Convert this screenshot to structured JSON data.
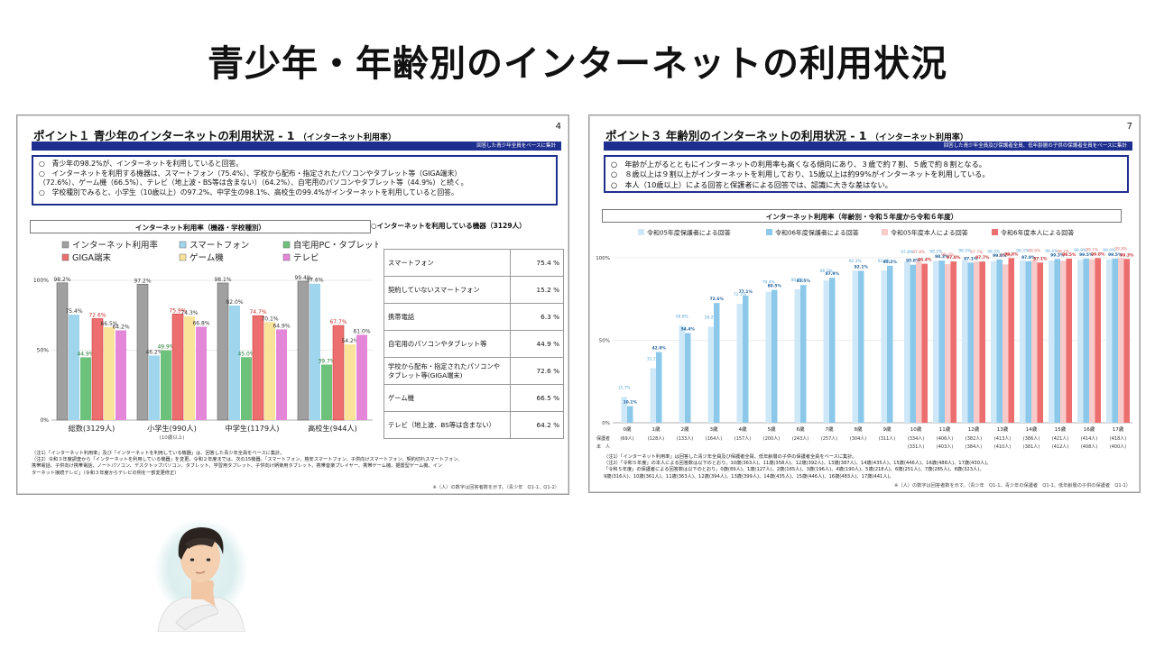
{
  "slide_title": "青少年・年齢別のインターネットの利用状況",
  "left": {
    "heading": "ポイント１ 青少年のインターネットの利用状況 - 1",
    "heading_small": "（インターネット利用率）",
    "page": "4",
    "band": "回答した青少年全員をベースに集計",
    "summary": [
      "○　青少年の98.2%が、インターネットを利用していると回答。",
      "○　インターネットを利用する機器は、スマートフォン（75.4%）、学校から配布・指定されたパソコンやタブレット等（GIGA端末）",
      "（72.6%）、ゲーム機（66.5%）、テレビ（地上波・BS等は含まない）（64.2%）、自宅用のパソコンやタブレット等（44.9%）と続く。",
      "○　学校種別でみると、小学生（10歳以上）の97.2%、中学生の98.1%、高校生の99.4%がインターネットを利用していると回答。"
    ],
    "chart_title": "インターネット利用率（機器・学校種別）",
    "table_title": "○インターネットを利用している機器（3129人）",
    "devices": [
      {
        "label": "スマートフォン",
        "value": "75.4 %"
      },
      {
        "label": "契約していないスマートフォン",
        "value": "15.2 %"
      },
      {
        "label": "携帯電話",
        "value": "6.3 %"
      },
      {
        "label": "自宅用のパソコンやタブレット等",
        "value": "44.9 %"
      },
      {
        "label": "学校から配布・指定されたパソコンやタブレット等(GIGA端末)",
        "value": "72.6 %"
      },
      {
        "label": "ゲーム機",
        "value": "66.5 %"
      },
      {
        "label": "テレビ（地上波、BS等は含まない）",
        "value": "64.2 %"
      }
    ],
    "notes": [
      "（注1）「インターネット利用率」及び「インターネットを利用している機器」は、回答した青少年全員をベースに集計。",
      "（注2）令和３年度調査から「インターネットを利用している機器」を変更。令和２年度までは、次の15機器。「スマートフォン、格安スマートフォン、子供向けスマートフォン、契約切れスマートフォン、",
      "携帯電話、子供向け携帯電話、ノートパソコン、デスクトップパソコン、タブレット、学習用タブレット、子供向け娯楽用タブレット、携帯音楽プレイヤー、携帯ゲーム機、据置型ゲーム機、イン",
      "ターネット接続テレビ」（令和３年度からテレビの例を一部変更修正）"
    ],
    "source": "※（人）の数字は回答者数を示す。（青少年　Q1-1、Q1-2）"
  },
  "right": {
    "heading": "ポイント３ 年齢別のインターネットの利用状況 - 1",
    "heading_small": "（インターネット利用率）",
    "page": "7",
    "band": "回答した青少年全員及び保護者全員、低年齢層の子供の保護者全員をベースに集計",
    "summary": [
      "○　年齢が上がるとともにインターネットの利用率も高くなる傾向にあり、３歳で約７割、５歳で約８割となる。",
      "○　８歳以上は９割以上がインターネットを利用しており、15歳以上は約99%がインターネットを利用している。",
      "○　本人（10歳以上）による回答と保護者による回答では、認識に大きな差はない。"
    ],
    "chart_title": "インターネット利用率（年齢別・令和５年度から令和６年度）",
    "notes": [
      "（注1）「インターネット利用率」は回答した青少年全員及び保護者全員、低年齢層の子供の保護者全員をベースに集計。",
      "（注2）「令和５年度」の本人による回答数は以下のとおり。10歳(363人)、11歳(358人)、12歳(392人)、13歳(387人)、14歳(435人)、15歳(446人)、16歳(488人)、17歳(430人)。",
      "「令和５年度」の保護者による回答数は以下のとおり。0歳(89人)、1歳(127人)、2歳(165人)、3歳(196人)、4歳(190人)、5歳(218人)、6歳(251人)、7歳(285人)、8歳(323人)、",
      "9歳(316人)、10歳(361人)、11歳(363人)、12歳(394人)、13歳(399人)、14歳(435人)、15歳(446人)、16歳(483人)、17歳(441人)。"
    ],
    "source": "※（人）の数字は回答者数を示す。（青少年　Q1-1、青少年の保護者　Q1-1、低年齢層の子供の保護者　Q1-1）"
  },
  "chart_data": [
    {
      "type": "bar",
      "title": "インターネット利用率（機器・学校種別）",
      "categories": [
        "総数(3129人)",
        "小学生(990人)",
        "中学生(1179人)",
        "高校生(944人)"
      ],
      "category_note": [
        "",
        "(10歳以上)",
        "",
        ""
      ],
      "ylim": [
        0,
        100
      ],
      "yticks": [
        "0%",
        "50%",
        "100%"
      ],
      "series": [
        {
          "name": "インターネット利用率",
          "color": "#a0a0a0",
          "values": [
            98.2,
            97.2,
            98.1,
            99.4
          ]
        },
        {
          "name": "スマートフォン",
          "color": "#9fd6ee",
          "values": [
            75.4,
            46.2,
            82.0,
            97.6
          ]
        },
        {
          "name": "自宅用PC・タブレット",
          "color": "#6cc27a",
          "values": [
            44.9,
            49.9,
            45.0,
            39.7
          ]
        },
        {
          "name": "GIGA端末",
          "color": "#ec6e6e",
          "values": [
            72.6,
            75.9,
            74.7,
            67.7
          ]
        },
        {
          "name": "ゲーム機",
          "color": "#f9e39a",
          "values": [
            66.5,
            74.3,
            70.1,
            54.2
          ]
        },
        {
          "name": "テレビ",
          "color": "#e487d8",
          "values": [
            64.2,
            66.8,
            64.9,
            61.0
          ]
        }
      ]
    },
    {
      "type": "bar",
      "title": "インターネット利用率（年齢別・令和５年度から令和６年度）",
      "categories": [
        "0歳",
        "1歳",
        "2歳",
        "3歳",
        "4歳",
        "5歳",
        "6歳",
        "7歳",
        "8歳",
        "9歳",
        "10歳",
        "11歳",
        "12歳",
        "13歳",
        "14歳",
        "15歳",
        "16歳",
        "17歳"
      ],
      "ylim": [
        0,
        100
      ],
      "yticks": [
        "0%",
        "50%",
        "100%"
      ],
      "row_label": "保護者\n本　人",
      "parent_n": [
        "(69人)",
        "(128人)",
        "(133人)",
        "(164人)",
        "(157人)",
        "(200人)",
        "(243人)",
        "(257人)",
        "(304人)",
        "(311人)",
        "(334人)",
        "(406人)",
        "(382人)",
        "(413人)",
        "(386人)",
        "(421人)",
        "(414人)",
        "(418人)"
      ],
      "self_n": [
        "",
        "",
        "",
        "",
        "",
        "",
        "",
        "",
        "",
        "",
        "(331人)",
        "(403人)",
        "(384人)",
        "(410人)",
        "(381人)",
        "(412人)",
        "(408人)",
        "(400人)"
      ],
      "series": [
        {
          "name": "令和05年度保護者による回答",
          "color": "#cfe8f8",
          "values": [
            15.7,
            33.1,
            58.8,
            58.2,
            72.1,
            79.4,
            80.9,
            86.3,
            92.3,
            92.4,
            97.8,
            98.2,
            98.5,
            98.0,
            98.5,
            98.4,
            98.8,
            99.0
          ]
        },
        {
          "name": "令和06年度保護者による回答",
          "color": "#8cc8ea",
          "values": [
            10.1,
            42.9,
            54.4,
            72.6,
            77.1,
            80.5,
            83.5,
            87.9,
            92.1,
            95.2,
            95.8,
            98.3,
            97.1,
            99.0,
            97.9,
            99.3,
            99.5,
            99.5
          ]
        },
        {
          "name": "令和05年度本人による回答",
          "color": "#f8caca",
          "values": [
            null,
            null,
            null,
            null,
            null,
            null,
            null,
            null,
            null,
            null,
            97.8,
            96.2,
            97.7,
            96.0,
            98.6,
            98.2,
            99.1,
            99.8
          ]
        },
        {
          "name": "令和6年度本人による回答",
          "color": "#ec6e6e",
          "values": [
            null,
            null,
            null,
            null,
            null,
            null,
            null,
            null,
            null,
            null,
            96.4,
            97.8,
            97.7,
            99.8,
            97.1,
            99.5,
            99.8,
            99.3
          ]
        }
      ]
    }
  ]
}
